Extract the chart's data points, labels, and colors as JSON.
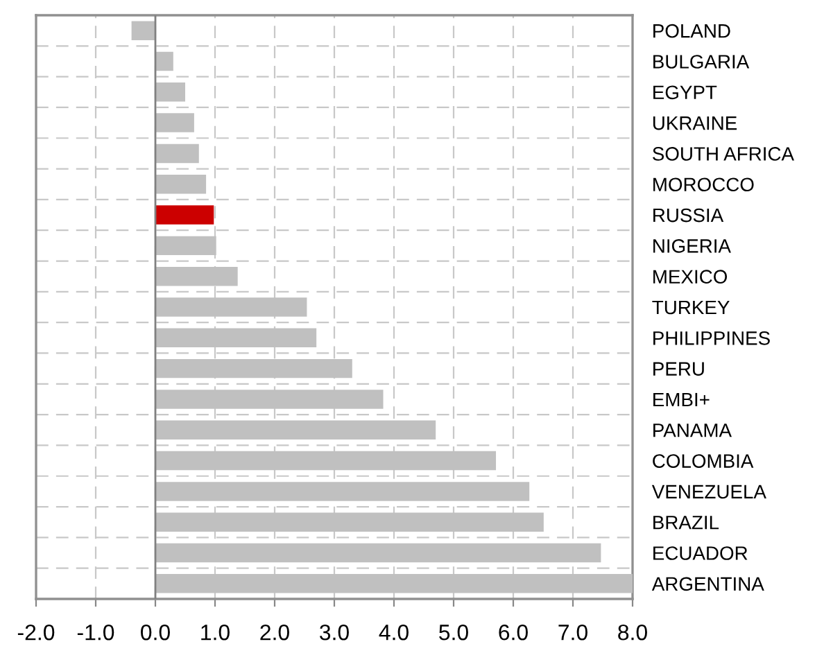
{
  "chart_data": {
    "type": "bar",
    "orientation": "horizontal",
    "categories": [
      "POLAND",
      "BULGARIA",
      "EGYPT",
      "UKRAINE",
      "SOUTH AFRICA",
      "MOROCCO",
      "RUSSIA",
      "NIGERIA",
      "MEXICO",
      "TURKEY",
      "PHILIPPINES",
      "PERU",
      "EMBI+",
      "PANAMA",
      "COLOMBIA",
      "VENEZUELA",
      "BRAZIL",
      "ECUADOR",
      "ARGENTINA"
    ],
    "values": [
      -0.4,
      0.3,
      0.5,
      0.65,
      0.73,
      0.85,
      0.98,
      1.02,
      1.38,
      2.54,
      2.7,
      3.3,
      3.82,
      4.7,
      5.71,
      6.27,
      6.51,
      7.47,
      8.0
    ],
    "colors": [
      "#c0c0c0",
      "#c0c0c0",
      "#c0c0c0",
      "#c0c0c0",
      "#c0c0c0",
      "#c0c0c0",
      "#cc0000",
      "#c0c0c0",
      "#c0c0c0",
      "#c0c0c0",
      "#c0c0c0",
      "#c0c0c0",
      "#c0c0c0",
      "#c0c0c0",
      "#c0c0c0",
      "#c0c0c0",
      "#c0c0c0",
      "#c0c0c0",
      "#c0c0c0"
    ],
    "xlim": [
      -2.0,
      8.0
    ],
    "xticks": [
      {
        "value": -2,
        "label": "-2.0"
      },
      {
        "value": -1,
        "label": "-1.0"
      },
      {
        "value": 0,
        "label": "0.0"
      },
      {
        "value": 1,
        "label": "1.0"
      },
      {
        "value": 2,
        "label": "2.0"
      },
      {
        "value": 3,
        "label": "3.0"
      },
      {
        "value": 4,
        "label": "4.0"
      },
      {
        "value": 5,
        "label": "5.0"
      },
      {
        "value": 6,
        "label": "6.0"
      },
      {
        "value": 7,
        "label": "7.0"
      },
      {
        "value": 8,
        "label": "8.0"
      }
    ],
    "grid": true
  }
}
